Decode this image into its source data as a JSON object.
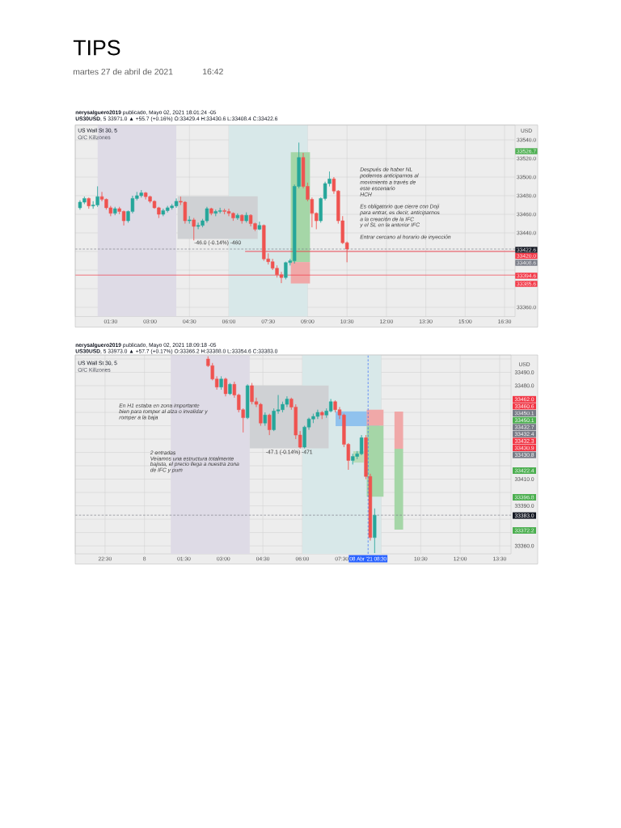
{
  "chart_data": [
    {
      "type": "candlestick",
      "title": "TIPS",
      "subtitle": "martes 27 de abril de 2021",
      "ylabel": "USD",
      "x": [
        0.3333,
        0.5,
        0.6667,
        0.8333,
        1.0,
        1.1667,
        1.3333,
        1.5,
        1.6667,
        1.8333,
        2.0,
        2.1667,
        2.3333,
        2.5,
        2.6667,
        2.8333,
        3.0,
        3.1667,
        3.3333,
        3.5,
        3.6667,
        3.8333,
        4.0,
        4.1667,
        4.3333,
        4.5,
        4.6667,
        4.8333,
        5.0,
        5.1667,
        5.3333,
        5.5,
        5.6667,
        5.8333,
        6.0,
        6.1667,
        6.3333,
        6.5,
        6.6667,
        6.8333,
        7.0,
        7.1667,
        7.3333,
        7.5,
        7.6667,
        7.8333,
        8.0,
        8.1667,
        8.3333,
        8.5,
        8.6667,
        8.8333,
        9.0,
        9.1667,
        9.3333,
        9.5,
        9.6667,
        9.8333,
        10.0,
        10.1667,
        10.3333,
        10.5
      ],
      "ohlc": [
        [
          33467,
          33475,
          33465,
          33473
        ],
        [
          33473,
          33479,
          33471,
          33477
        ],
        [
          33477,
          33478,
          33466,
          33469
        ],
        [
          33469,
          33474,
          33466,
          33470
        ],
        [
          33470,
          33490,
          33468,
          33479
        ],
        [
          33479,
          33484,
          33474,
          33476
        ],
        [
          33476,
          33477,
          33465,
          33467
        ],
        [
          33467,
          33469,
          33458,
          33461
        ],
        [
          33461,
          33468,
          33459,
          33466
        ],
        [
          33466,
          33468,
          33460,
          33463
        ],
        [
          33463,
          33464,
          33448,
          33453
        ],
        [
          33453,
          33464,
          33451,
          33463
        ],
        [
          33463,
          33480,
          33461,
          33477
        ],
        [
          33477,
          33484,
          33475,
          33480
        ],
        [
          33480,
          33486,
          33478,
          33483
        ],
        [
          33483,
          33484,
          33476,
          33479
        ],
        [
          33479,
          33480,
          33472,
          33474
        ],
        [
          33474,
          33475,
          33466,
          33467
        ],
        [
          33467,
          33468,
          33456,
          33460
        ],
        [
          33460,
          33466,
          33458,
          33464
        ],
        [
          33464,
          33469,
          33462,
          33467
        ],
        [
          33467,
          33471,
          33465,
          33469
        ],
        [
          33469,
          33477,
          33467,
          33474
        ],
        [
          33474,
          33479,
          33470,
          33473
        ],
        [
          33473,
          33474,
          33450,
          33453
        ],
        [
          33453,
          33458,
          33450,
          33454
        ],
        [
          33454,
          33456,
          33432,
          33447
        ],
        [
          33447,
          33451,
          33444,
          33448
        ],
        [
          33448,
          33455,
          33446,
          33453
        ],
        [
          33453,
          33468,
          33451,
          33466
        ],
        [
          33466,
          33467,
          33459,
          33461
        ],
        [
          33461,
          33465,
          33458,
          33463
        ],
        [
          33463,
          33467,
          33461,
          33464
        ],
        [
          33464,
          33466,
          33460,
          33463
        ],
        [
          33463,
          33466,
          33458,
          33461
        ],
        [
          33461,
          33462,
          33453,
          33456
        ],
        [
          33456,
          33461,
          33454,
          33459
        ],
        [
          33459,
          33460,
          33450,
          33453
        ],
        [
          33453,
          33462,
          33451,
          33459
        ],
        [
          33459,
          33460,
          33447,
          33450
        ],
        [
          33450,
          33451,
          33442,
          33444
        ],
        [
          33444,
          33452,
          33443,
          33448
        ],
        [
          33448,
          33449,
          33410,
          33412
        ],
        [
          33412,
          33418,
          33406,
          33409
        ],
        [
          33409,
          33412,
          33400,
          33402
        ],
        [
          33402,
          33405,
          33392,
          33395
        ],
        [
          33395,
          33398,
          33386,
          33392
        ],
        [
          33392,
          33409,
          33390,
          33408
        ],
        [
          33408,
          33412,
          33405,
          33410
        ],
        [
          33410,
          33492,
          33407,
          33490
        ],
        [
          33490,
          33537,
          33488,
          33521
        ],
        [
          33521,
          33526,
          33488,
          33490
        ],
        [
          33490,
          33494,
          33474,
          33476
        ],
        [
          33476,
          33478,
          33446,
          33461
        ],
        [
          33461,
          33462,
          33444,
          33453
        ],
        [
          33453,
          33478,
          33451,
          33477
        ],
        [
          33477,
          33495,
          33475,
          33493
        ],
        [
          33493,
          33506,
          33490,
          33498
        ],
        [
          33498,
          33500,
          33482,
          33485
        ],
        [
          33485,
          33486,
          33450,
          33453
        ],
        [
          33453,
          33458,
          33428,
          33429.4
        ],
        [
          33429.4,
          33430.6,
          33408.4,
          33422.6
        ]
      ],
      "xlim": [
        0.15,
        16.9
      ],
      "ylim": [
        33350,
        33556
      ],
      "xticks": [
        {
          "value": 1.5,
          "label": "01:30"
        },
        {
          "value": 3,
          "label": "03:00"
        },
        {
          "value": 4.5,
          "label": "04:30"
        },
        {
          "value": 6,
          "label": "06:00"
        },
        {
          "value": 7.5,
          "label": "07:30"
        },
        {
          "value": 9,
          "label": "09:00"
        },
        {
          "value": 10.5,
          "label": "10:30"
        },
        {
          "value": 12,
          "label": "12:00"
        },
        {
          "value": 13.5,
          "label": "13:30"
        },
        {
          "value": 15,
          "label": "15:00"
        },
        {
          "value": 16.5,
          "label": "16:30"
        }
      ],
      "yticks": [
        {
          "value": 33360,
          "label": "33360.0"
        },
        {
          "value": 33380,
          "label": null
        },
        {
          "value": 33400,
          "label": null
        },
        {
          "value": 33420,
          "label": null
        },
        {
          "value": 33440,
          "label": "33440.0"
        },
        {
          "value": 33460,
          "label": "33460.0"
        },
        {
          "value": 33480,
          "label": "33480.0"
        },
        {
          "value": 33500,
          "label": "33500.0"
        },
        {
          "value": 33520,
          "label": "33520.0"
        },
        {
          "value": 33540,
          "label": "33540.0"
        }
      ],
      "grid": true,
      "bands": [
        {
          "axis": "x",
          "from": 1,
          "to": 4,
          "color": "#dedbe6"
        },
        {
          "axis": "x",
          "from": 6,
          "to": 9,
          "color": "#d8e8e9"
        }
      ],
      "ref_lines": [
        {
          "axis": "y",
          "value": 33422.6,
          "color": "#787b86",
          "line_style": "dashed"
        },
        {
          "axis": "y",
          "value": 33394.6,
          "color": "#f23645",
          "line_style": "solid"
        }
      ],
      "series": [
        {
          "type": "bar",
          "x": [
            5.575
          ],
          "base": [
            33479.4
          ],
          "values": [
            -46.0
          ],
          "color": "#cfd1d4",
          "value_labels": [
            "-46.0 (-0.14%) -460"
          ]
        },
        {
          "type": "line",
          "x": [
            6.62,
            16.9
          ],
          "values": [
            33420.0,
            33420.0
          ],
          "color": "#f23645"
        },
        {
          "type": "bar",
          "x": [
            8.725
          ],
          "base": [
            33408.6
          ],
          "values": [
            118.1
          ],
          "color": "#a5d6a7"
        },
        {
          "type": "bar",
          "x": [
            8.725
          ],
          "base": [
            33408.6
          ],
          "values": [
            -23.0
          ],
          "color": "#f0a8a8"
        }
      ],
      "annotations": [
        "16:42",
        "**nerysalguero2019** publicado, Mayo 02, 2021 18:01:24 -05",
        "**US30USD**, 5 33971.0 ▲ +55.7 (+0.16%) O:33429.4 H:33430.6 L:33408.4 C:33422.6",
        "US Wall St 30, 5",
        "O/C Killzones",
        "Después de haber NL",
        "podemos anticiparnos al",
        "movimiento a través de",
        "este escenario",
        "HCH",
        "Es obligatorio que cierre con Doji",
        "para entrar, es decir, anticiparnos",
        "a la creación de la IFC",
        "y el SL en la anterior IFC",
        "Entrar cercano al horario de inyección",
        "33526.7",
        "33422.6",
        "33420.0",
        "33408.6",
        "33394.6",
        "33385.6"
      ]
    },
    {
      "type": "candlestick",
      "ylabel": "USD",
      "x": [
        "2021-04-08T02:25",
        "2021-04-08T02:35",
        "2021-04-08T02:45",
        "2021-04-08T02:55",
        "2021-04-08T03:05",
        "2021-04-08T03:15",
        "2021-04-08T03:25",
        "2021-04-08T03:35",
        "2021-04-08T03:45",
        "2021-04-08T03:55",
        "2021-04-08T04:05",
        "2021-04-08T04:15",
        "2021-04-08T04:25",
        "2021-04-08T04:35",
        "2021-04-08T04:45",
        "2021-04-08T04:55",
        "2021-04-08T05:05",
        "2021-04-08T05:15",
        "2021-04-08T05:25",
        "2021-04-08T05:35",
        "2021-04-08T05:45",
        "2021-04-08T05:55",
        "2021-04-08T06:05",
        "2021-04-08T06:15",
        "2021-04-08T06:25",
        "2021-04-08T06:35",
        "2021-04-08T06:45",
        "2021-04-08T06:55",
        "2021-04-08T07:05",
        "2021-04-08T07:15",
        "2021-04-08T07:25",
        "2021-04-08T07:35",
        "2021-04-08T07:45",
        "2021-04-08T07:55",
        "2021-04-08T08:05",
        "2021-04-08T08:15",
        "2021-04-08T08:25",
        "2021-04-08T08:35",
        "2021-04-08T08:45"
      ],
      "ohlc": [
        [
          33500,
          33502,
          33494,
          33495
        ],
        [
          33495,
          33497,
          33484,
          33485
        ],
        [
          33485,
          33487,
          33477,
          33479
        ],
        [
          33479,
          33487,
          33477,
          33485
        ],
        [
          33485,
          33486,
          33472,
          33474
        ],
        [
          33474,
          33482,
          33473,
          33481
        ],
        [
          33481,
          33483,
          33471,
          33473
        ],
        [
          33473,
          33474,
          33460,
          33462
        ],
        [
          33462,
          33463,
          33445,
          33456
        ],
        [
          33456,
          33481,
          33455,
          33480
        ],
        [
          33480,
          33482,
          33466,
          33468
        ],
        [
          33468,
          33471,
          33464,
          33466
        ],
        [
          33466,
          33467,
          33450,
          33452
        ],
        [
          33452,
          33460,
          33450,
          33458
        ],
        [
          33458,
          33459,
          33443,
          33447
        ],
        [
          33447,
          33463,
          33446,
          33461
        ],
        [
          33461,
          33473,
          33459,
          33462
        ],
        [
          33462,
          33468,
          33460,
          33466
        ],
        [
          33466,
          33472,
          33464,
          33470
        ],
        [
          33470,
          33471,
          33462,
          33464
        ],
        [
          33464,
          33466,
          33440,
          33443
        ],
        [
          33443,
          33446,
          33433,
          33434
        ],
        [
          33434,
          33450,
          33433,
          33449
        ],
        [
          33449,
          33456,
          33447,
          33455
        ],
        [
          33455,
          33459,
          33452,
          33457
        ],
        [
          33457,
          33462,
          33455,
          33460
        ],
        [
          33460,
          33461,
          33455,
          33458
        ],
        [
          33458,
          33463,
          33456,
          33461
        ],
        [
          33461,
          33470,
          33460,
          33468
        ],
        [
          33468,
          33469,
          33460,
          33462
        ],
        [
          33462,
          33464,
          33455,
          33458
        ],
        [
          33458,
          33459,
          33434,
          33436
        ],
        [
          33436,
          33437,
          33417,
          33424
        ],
        [
          33424,
          33429,
          33421,
          33427
        ],
        [
          33427,
          33431,
          33425,
          33429
        ],
        [
          33429,
          33443,
          33428,
          33441
        ],
        [
          33441,
          33443,
          33410,
          33412
        ],
        [
          33412,
          33414,
          33364,
          33366.2
        ],
        [
          33366.2,
          33388.0,
          33354.6,
          33383.0
        ]
      ],
      "xlim": [
        "2021-04-07T21:22",
        "2021-04-08T13:56"
      ],
      "ylim": [
        33354,
        33503
      ],
      "xticks": [
        {
          "value": "2021-04-07T22:30",
          "label": "22:30"
        },
        {
          "value": "2021-04-08T00:00",
          "label": "8"
        },
        {
          "value": "2021-04-08T01:30",
          "label": "01:30"
        },
        {
          "value": "2021-04-08T03:00",
          "label": "03:00"
        },
        {
          "value": "2021-04-08T04:30",
          "label": "04:30"
        },
        {
          "value": "2021-04-08T06:00",
          "label": "06:00"
        },
        {
          "value": "2021-04-08T07:30",
          "label": "07:30"
        },
        {
          "value": "2021-04-08T09:00",
          "label": null
        },
        {
          "value": "2021-04-08T10:30",
          "label": "10:30"
        },
        {
          "value": "2021-04-08T12:00",
          "label": "12:00"
        },
        {
          "value": "2021-04-08T13:30",
          "label": "13:30"
        }
      ],
      "yticks": [
        {
          "value": 33360,
          "label": "33360.0"
        },
        {
          "value": 33370,
          "label": null
        },
        {
          "value": 33380,
          "label": null
        },
        {
          "value": 33390,
          "label": "33390.0"
        },
        {
          "value": 33400,
          "label": null
        },
        {
          "value": 33410,
          "label": "33410.0"
        },
        {
          "value": 33420,
          "label": null
        },
        {
          "value": 33430,
          "label": null
        },
        {
          "value": 33440,
          "label": null
        },
        {
          "value": 33450,
          "label": null
        },
        {
          "value": 33460,
          "label": null
        },
        {
          "value": 33470,
          "label": null
        },
        {
          "value": 33480,
          "label": "33480.0"
        },
        {
          "value": 33490,
          "label": "33490.0"
        },
        {
          "value": 33500,
          "label": null
        }
      ],
      "grid": true,
      "bands": [
        {
          "axis": "x",
          "from": "2021-04-08T01:00",
          "to": "2021-04-08T04:00",
          "color": "#dedbe6"
        },
        {
          "axis": "x",
          "from": "2021-04-08T06:00",
          "to": "2021-04-08T09:00",
          "color": "#d8e8e9"
        }
      ],
      "ref_lines": [
        {
          "axis": "y",
          "value": 33383.0,
          "color": "#787b86",
          "line_style": "dashed"
        },
        {
          "axis": "x",
          "value": "2021-04-08T08:30",
          "label": "08 Abr '21  08:30",
          "color": "#2962ff",
          "line_style": "dashed"
        }
      ],
      "series": [
        {
          "type": "bar",
          "x": [
            "2021-04-08T05:30"
          ],
          "base": [
            33480.1
          ],
          "values": [
            -47.1
          ],
          "color": "#cfd1d4",
          "value_labels": [
            "-47.1 (-0.14%) -471"
          ]
        },
        {
          "type": "bar",
          "x": [
            "2021-04-08T08:06"
          ],
          "base": [
            33449.7
          ],
          "values": [
            11.1
          ],
          "color": "#90c2ee"
        },
        {
          "type": "bar",
          "x": [
            "2021-04-08T08:08"
          ],
          "base": [
            33430.9
          ],
          "values": [
            -8.5
          ],
          "color": "#b9dcb9"
        },
        {
          "type": "bar",
          "x": [
            "2021-04-08T08:46"
          ],
          "base": [
            33450.1
          ],
          "values": [
            -53.3
          ],
          "color": "#a5d6a7"
        },
        {
          "type": "bar",
          "x": [
            "2021-04-08T08:46"
          ],
          "base": [
            33450.1
          ],
          "values": [
            11.9
          ],
          "color": "#f0a8a8"
        },
        {
          "type": "bar",
          "x": [
            "2021-04-08T09:40"
          ],
          "base": [
            33432.7
          ],
          "values": [
            27.9
          ],
          "color": "#f0a8a8"
        },
        {
          "type": "bar",
          "x": [
            "2021-04-08T09:40"
          ],
          "base": [
            33432.7
          ],
          "values": [
            -60.5
          ],
          "color": "#a5d6a7"
        }
      ],
      "annotations": [
        "**nerysalguero2019** publicado, Mayo 02, 2021 18:09:18 -05",
        "**US30USD**, 5 33973.0 ▲ +57.7 (+0.17%) O:33366.2 H:33388.0 L:33354.6 C:33383.0",
        "US Wall St 30, 5",
        "O/C Killzones",
        "En H1 estaba en zona importante",
        "bien para romper al alza o invalidar y",
        "romper a la baja",
        "2 entradas",
        "Veíamos una estructura totalmente",
        "bajista, el precio llega a nuestra zona",
        "de IFC y pum",
        "33462.0",
        "33460.6",
        "33450.1",
        "33450.1",
        "33432.7",
        "33432.4",
        "33432.3",
        "33430.9",
        "33430.8",
        "33422.4",
        "33396.8",
        "33383.0",
        "33372.2"
      ]
    }
  ]
}
